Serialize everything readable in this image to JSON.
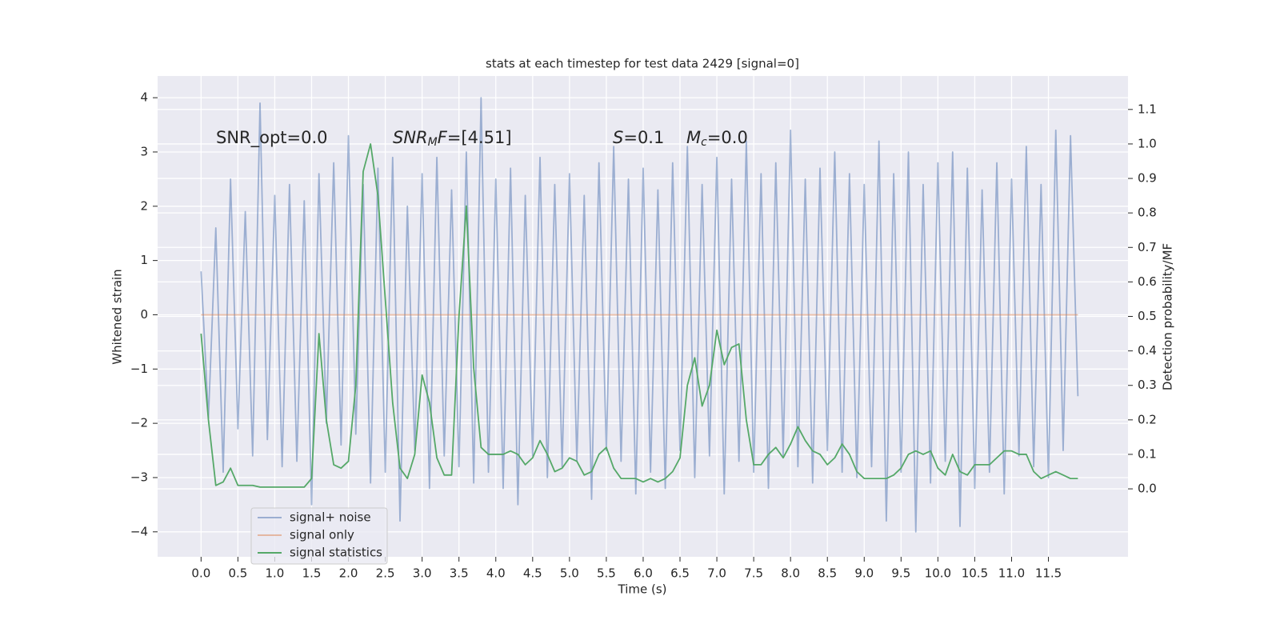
{
  "chart_data": {
    "type": "line",
    "title": "stats at each timestep for test data 2429 [signal=0]",
    "xlabel": "Time (s)",
    "ylabel": "Whitened strain",
    "y2label": "Detection probability/MF",
    "grid": true,
    "legend": "lower left",
    "xlim": [
      -0.59,
      12.58
    ],
    "ylim": [
      -4.46,
      4.4
    ],
    "y2lim": [
      -0.197,
      1.197
    ],
    "xticks": [
      {
        "value": 0,
        "label": "0.0"
      },
      0.5,
      {
        "value": 1,
        "label": "1.0"
      },
      1.5,
      {
        "value": 2,
        "label": "2.0"
      },
      2.5,
      {
        "value": 3,
        "label": "3.0"
      },
      3.5,
      {
        "value": 4,
        "label": "4.0"
      },
      4.5,
      {
        "value": 5,
        "label": "5.0"
      },
      5.5,
      {
        "value": 6,
        "label": "6.0"
      },
      6.5,
      {
        "value": 7,
        "label": "7.0"
      },
      7.5,
      {
        "value": 8,
        "label": "8.0"
      },
      8.5,
      {
        "value": 9,
        "label": "9.0"
      },
      9.5,
      {
        "value": 10,
        "label": "10.0"
      },
      10.5,
      {
        "value": 11,
        "label": "11.0"
      },
      11.5
    ],
    "yticks": [
      {
        "value": -4,
        "label": "−4"
      },
      {
        "value": -3,
        "label": "−3"
      },
      {
        "value": -2,
        "label": "−2"
      },
      {
        "value": -1,
        "label": "−1"
      },
      0,
      1,
      2,
      3,
      4
    ],
    "y2ticks": [
      {
        "value": 0,
        "label": "0.0"
      },
      0.1,
      0.2,
      0.3,
      0.4,
      0.5,
      0.6,
      0.7,
      0.8,
      0.9,
      {
        "value": 1,
        "label": "1.0"
      },
      1.1
    ],
    "annotations": [
      {
        "parts": [
          {
            "text": "SNR_opt=0.0"
          }
        ]
      },
      {
        "parts": [
          {
            "text": "SNR",
            "italic": true
          },
          {
            "text": "M",
            "italic": true,
            "sub": true
          },
          {
            "text": "F",
            "italic": true
          },
          {
            "text": "=[4.51]"
          }
        ]
      },
      {
        "parts": [
          {
            "text": "S",
            "italic": true
          },
          {
            "text": "=0.1"
          }
        ]
      },
      {
        "parts": [
          {
            "text": "M",
            "italic": true
          },
          {
            "text": "c",
            "italic": true,
            "sub": true
          },
          {
            "text": "=0.0"
          }
        ]
      }
    ],
    "x": [
      0,
      0.1,
      0.2,
      0.3,
      0.4,
      0.5,
      0.6,
      0.7,
      0.8,
      0.9,
      1,
      1.1,
      1.2,
      1.3,
      1.4,
      1.5,
      1.6,
      1.7,
      1.8,
      1.9,
      2,
      2.1,
      2.2,
      2.3,
      2.4,
      2.5,
      2.6,
      2.7,
      2.8,
      2.9,
      3,
      3.1,
      3.2,
      3.3,
      3.4,
      3.5,
      3.6,
      3.7,
      3.8,
      3.9,
      4,
      4.1,
      4.2,
      4.3,
      4.4,
      4.5,
      4.6,
      4.7,
      4.8,
      4.9,
      5,
      5.1,
      5.2,
      5.3,
      5.4,
      5.5,
      5.6,
      5.7,
      5.8,
      5.9,
      6,
      6.1,
      6.2,
      6.3,
      6.4,
      6.5,
      6.6,
      6.7,
      6.8,
      6.9,
      7,
      7.1,
      7.2,
      7.3,
      7.4,
      7.5,
      7.6,
      7.7,
      7.8,
      7.9,
      8,
      8.1,
      8.2,
      8.3,
      8.4,
      8.5,
      8.6,
      8.7,
      8.8,
      8.9,
      9,
      9.1,
      9.2,
      9.3,
      9.4,
      9.5,
      9.6,
      9.7,
      9.8,
      9.9,
      10,
      10.1,
      10.2,
      10.3,
      10.4,
      10.5,
      10.6,
      10.7,
      10.8,
      10.9,
      11,
      11.1,
      11.2,
      11.3,
      11.4,
      11.5,
      11.6,
      11.7,
      11.8,
      11.9
    ],
    "series": [
      {
        "name": "signal+ noise",
        "color": "#4c72b0",
        "alpha": 0.5,
        "values": [
          0.8,
          -1.9,
          1.6,
          -2.9,
          2.5,
          -2.1,
          1.9,
          -2.6,
          3.9,
          -2.3,
          2.2,
          -2.8,
          2.4,
          -2.7,
          2.1,
          -3.5,
          2.6,
          -2.0,
          2.8,
          -2.4,
          3.3,
          -2.2,
          2.4,
          -3.1,
          2.7,
          -2.9,
          2.9,
          -3.8,
          2.0,
          -2.5,
          2.6,
          -3.2,
          2.9,
          -2.6,
          2.3,
          -2.8,
          3.0,
          -3.1,
          4.0,
          -2.9,
          2.5,
          -3.2,
          2.7,
          -3.5,
          2.2,
          -2.6,
          2.9,
          -3.0,
          2.4,
          -2.8,
          2.6,
          -2.7,
          2.2,
          -3.4,
          2.8,
          -2.5,
          3.1,
          -2.7,
          2.5,
          -3.3,
          2.7,
          -2.9,
          2.3,
          -3.2,
          2.8,
          -2.5,
          3.1,
          -3.0,
          2.4,
          -2.6,
          2.9,
          -3.3,
          2.5,
          -2.7,
          3.2,
          -2.9,
          2.6,
          -3.2,
          2.8,
          -2.6,
          3.4,
          -2.8,
          2.5,
          -3.1,
          2.7,
          -2.5,
          3.0,
          -2.9,
          2.6,
          -3.0,
          2.4,
          -2.8,
          3.2,
          -3.8,
          2.6,
          -2.9,
          3.0,
          -4.0,
          2.4,
          -3.1,
          2.8,
          -2.7,
          3.0,
          -3.9,
          2.7,
          -3.2,
          2.3,
          -2.9,
          2.8,
          -3.3,
          2.5,
          -2.6,
          3.1,
          -2.8,
          2.4,
          -3.0,
          3.4,
          -2.5,
          3.3,
          -1.5
        ]
      },
      {
        "name": "signal only",
        "color": "#dd8452",
        "alpha": 0.5,
        "values": [
          0,
          0,
          0,
          0,
          0,
          0,
          0,
          0,
          0,
          0,
          0,
          0,
          0,
          0,
          0,
          0,
          0,
          0,
          0,
          0,
          0,
          0,
          0,
          0,
          0,
          0,
          0,
          0,
          0,
          0,
          0,
          0,
          0,
          0,
          0,
          0,
          0,
          0,
          0,
          0,
          0,
          0,
          0,
          0,
          0,
          0,
          0,
          0,
          0,
          0,
          0,
          0,
          0,
          0,
          0,
          0,
          0,
          0,
          0,
          0,
          0,
          0,
          0,
          0,
          0,
          0,
          0,
          0,
          0,
          0,
          0,
          0,
          0,
          0,
          0,
          0,
          0,
          0,
          0,
          0,
          0,
          0,
          0,
          0,
          0,
          0,
          0,
          0,
          0,
          0,
          0,
          0,
          0,
          0,
          0,
          0,
          0,
          0,
          0,
          0,
          0,
          0,
          0,
          0,
          0,
          0,
          0,
          0,
          0,
          0,
          0,
          0,
          0,
          0,
          0,
          0,
          0,
          0,
          0,
          0
        ]
      },
      {
        "name": "signal statistics",
        "color": "#55a868",
        "alpha": 1,
        "axis": "y2",
        "values": [
          0.45,
          0.2,
          0.01,
          0.02,
          0.06,
          0.01,
          0.01,
          0.01,
          0.005,
          0.005,
          0.005,
          0.005,
          0.005,
          0.005,
          0.005,
          0.03,
          0.45,
          0.2,
          0.07,
          0.06,
          0.08,
          0.3,
          0.92,
          1.0,
          0.85,
          0.55,
          0.25,
          0.06,
          0.03,
          0.1,
          0.33,
          0.25,
          0.09,
          0.04,
          0.04,
          0.5,
          0.82,
          0.35,
          0.12,
          0.1,
          0.1,
          0.1,
          0.11,
          0.1,
          0.07,
          0.09,
          0.14,
          0.1,
          0.05,
          0.06,
          0.09,
          0.08,
          0.04,
          0.05,
          0.1,
          0.12,
          0.06,
          0.03,
          0.03,
          0.03,
          0.02,
          0.03,
          0.02,
          0.03,
          0.05,
          0.09,
          0.3,
          0.38,
          0.24,
          0.3,
          0.46,
          0.36,
          0.41,
          0.42,
          0.2,
          0.07,
          0.07,
          0.1,
          0.12,
          0.09,
          0.13,
          0.18,
          0.14,
          0.11,
          0.1,
          0.07,
          0.09,
          0.13,
          0.1,
          0.05,
          0.03,
          0.03,
          0.03,
          0.03,
          0.04,
          0.06,
          0.1,
          0.11,
          0.1,
          0.11,
          0.06,
          0.04,
          0.1,
          0.05,
          0.04,
          0.07,
          0.07,
          0.07,
          0.09,
          0.11,
          0.11,
          0.1,
          0.1,
          0.05,
          0.03,
          0.04,
          0.05,
          0.04,
          0.03,
          0.03
        ]
      }
    ]
  }
}
